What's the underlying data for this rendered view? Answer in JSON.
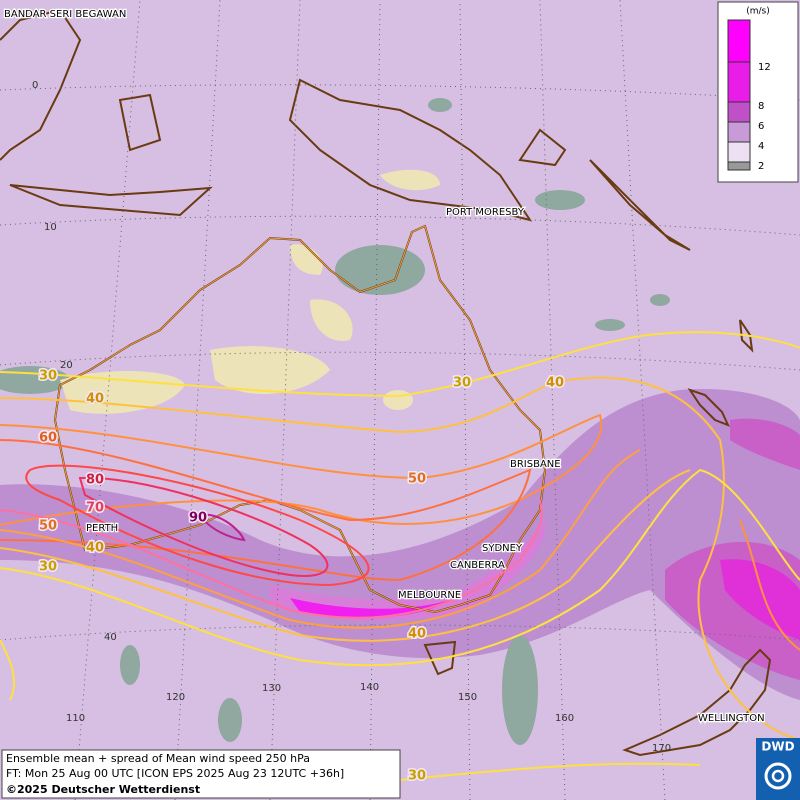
{
  "map": {
    "cities": [
      "BANDAR SERI BEGAWAN",
      "PORT MORESBY",
      "BRISBANE",
      "SYDNEY",
      "CANBERRA",
      "MELBOURNE",
      "PERTH",
      "WELLINGTON"
    ],
    "latitude_labels": [
      0,
      10,
      20,
      40
    ],
    "longitude_labels": [
      110,
      120,
      130,
      140,
      150,
      160,
      170
    ],
    "contour_labels": [
      30,
      40,
      60,
      80,
      70,
      50,
      40,
      30,
      90,
      50,
      30,
      40,
      40,
      30
    ]
  },
  "legend": {
    "unit": "(m/s)",
    "ticks": [
      12,
      8,
      6,
      4,
      2
    ]
  },
  "footer": {
    "lines": [
      "Ensemble mean + spread of Mean wind speed 250 hPa",
      "FT: Mon 25 Aug 00 UTC [ICON EPS 2025 Aug 23 12UTC +36h]",
      "©2025 Deutscher Wetterdienst"
    ]
  },
  "logo": "DWD"
}
